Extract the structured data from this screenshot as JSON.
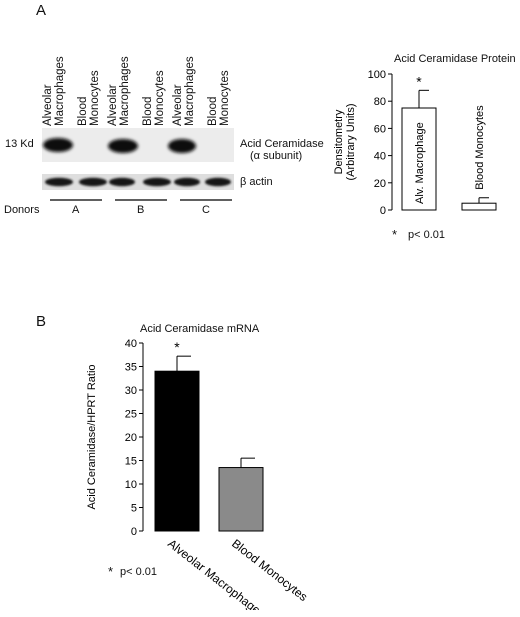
{
  "panel_a": {
    "label": "A",
    "lanes": [
      [
        "Alveolar",
        "Macrophages"
      ],
      [
        "Blood",
        "Monocytes"
      ],
      [
        "Alveolar",
        "Macrophages"
      ],
      [
        "Blood",
        "Monocytes"
      ],
      [
        "Alveolar",
        "Macrophages"
      ],
      [
        "Blood",
        "Monocytes"
      ]
    ],
    "size_marker": "13 Kd",
    "band_label_line1": "Acid Ceramidase",
    "band_label_line2": "(α subunit)",
    "actin_label": "β actin",
    "donors_label": "Donors",
    "donors": [
      "A",
      "B",
      "C"
    ]
  },
  "panel_b": {
    "label": "B",
    "footnote_star": "*",
    "footnote_text": "p< 0.01"
  },
  "chart_data": [
    {
      "type": "bar",
      "title": "Acid Ceramidase Protein",
      "ylabel_line1": "Densitometry",
      "ylabel_line2": "(Arbitrary Units)",
      "categories": [
        "Alv. Macrophage",
        "Blood Monocytes"
      ],
      "values": [
        75,
        5
      ],
      "errors": [
        13,
        4
      ],
      "significance": [
        "*",
        ""
      ],
      "ylim": [
        0,
        100
      ],
      "yticks": [
        "0",
        "20",
        "40",
        "60",
        "80",
        "100"
      ],
      "bar_colors": [
        "#ffffff",
        "#ffffff"
      ],
      "footnote_star": "*",
      "footnote_text": "p< 0.01"
    },
    {
      "type": "bar",
      "title": "Acid Ceramidase mRNA",
      "ylabel": "Acid Ceramidase/HPRT Ratio",
      "categories": [
        "Alveolar Macrophages",
        "Blood Monocytes"
      ],
      "values": [
        34,
        13.5
      ],
      "errors": [
        3.2,
        2
      ],
      "significance": [
        "*",
        ""
      ],
      "ylim": [
        0,
        40
      ],
      "yticks": [
        "0",
        "5",
        "10",
        "15",
        "20",
        "25",
        "30",
        "35",
        "40"
      ],
      "bar_colors": [
        "#000000",
        "#8a8a8a"
      ]
    }
  ]
}
